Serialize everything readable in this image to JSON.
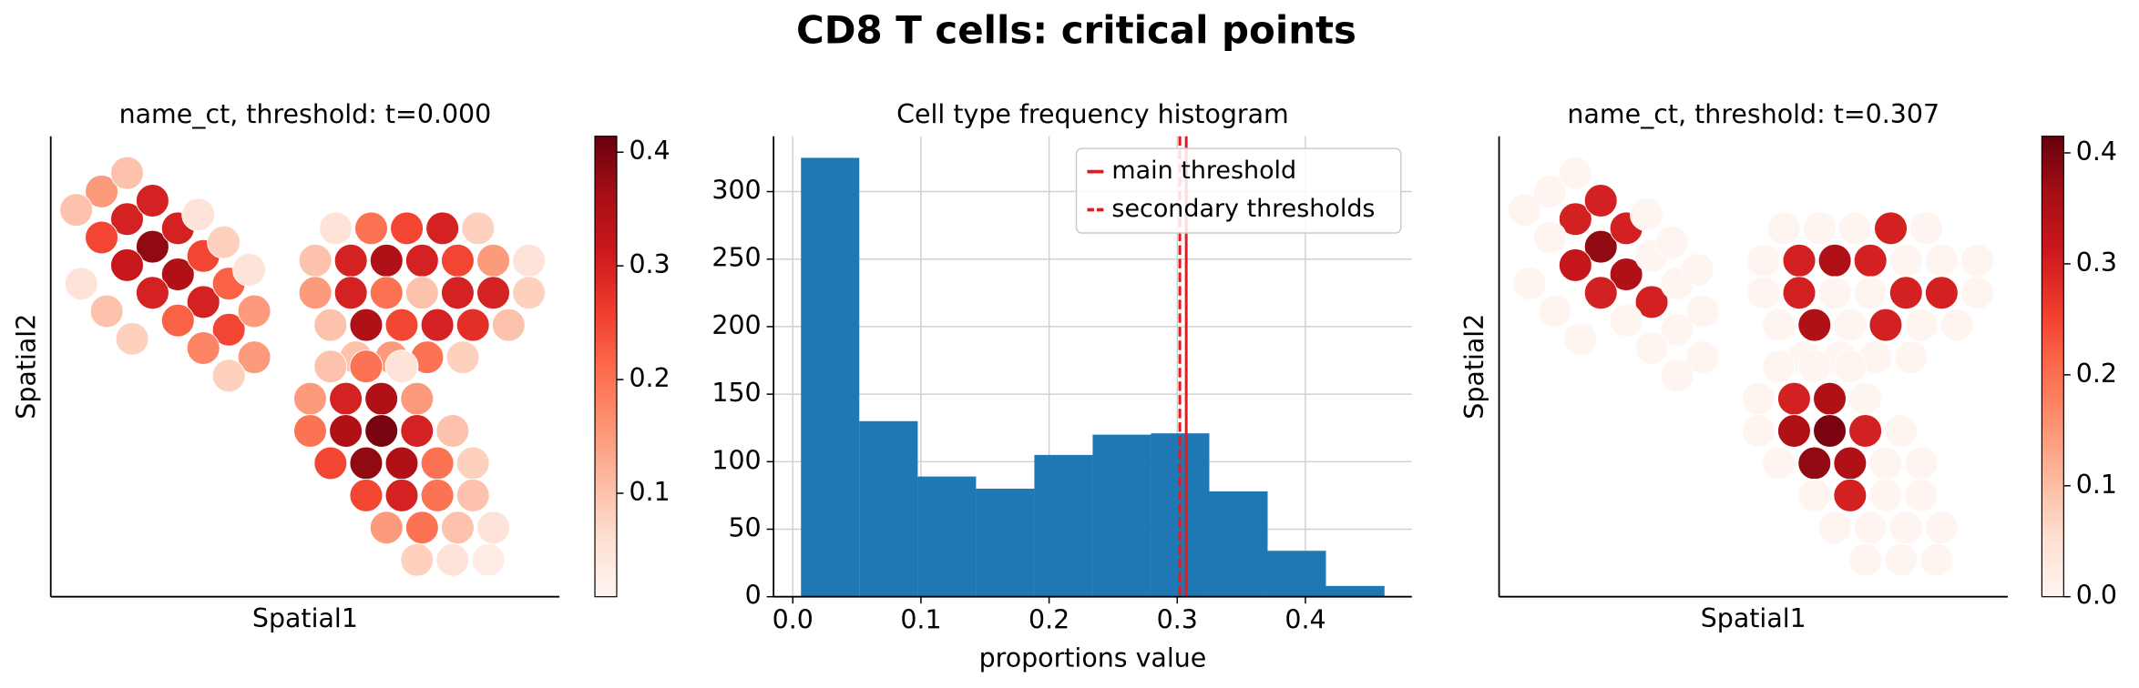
{
  "title": "CD8 T cells: critical points",
  "chart_data": [
    {
      "type": "scatter",
      "title": "name_ct, threshold: t=0.000",
      "xlabel": "Spatial1",
      "ylabel": "Spatial2",
      "xlim": [
        0,
        100
      ],
      "ylim": [
        0,
        100
      ],
      "cmap": "Reds",
      "clim": [
        0.009,
        0.414
      ],
      "cticks": [
        0.1,
        0.2,
        0.3,
        0.4
      ],
      "x": [
        10,
        15,
        20,
        25,
        30,
        35,
        40,
        15,
        20,
        25,
        30,
        35,
        40,
        5,
        10,
        15,
        20,
        25,
        30,
        35,
        29,
        34,
        39,
        6,
        11,
        16,
        56,
        63,
        70,
        77,
        84,
        52,
        59,
        66,
        73,
        80,
        87,
        94,
        52,
        59,
        66,
        73,
        80,
        87,
        94,
        55,
        62,
        69,
        76,
        83,
        90,
        60,
        67,
        74,
        81,
        55,
        62,
        69,
        51,
        58,
        65,
        72,
        51,
        58,
        65,
        72,
        79,
        55,
        62,
        69,
        76,
        83,
        62,
        69,
        76,
        83,
        66,
        73,
        80,
        87,
        72,
        79,
        86
      ],
      "y": [
        88,
        82,
        76,
        70,
        64,
        58,
        52,
        92,
        86,
        80,
        74,
        68,
        62,
        84,
        78,
        72,
        66,
        60,
        54,
        48,
        83,
        77,
        71,
        68,
        62,
        56,
        80,
        80,
        80,
        80,
        80,
        73,
        73,
        73,
        73,
        73,
        73,
        73,
        66,
        66,
        66,
        66,
        66,
        66,
        66,
        59,
        59,
        59,
        59,
        59,
        59,
        52,
        52,
        52,
        52,
        50,
        50,
        50,
        43,
        43,
        43,
        43,
        36,
        36,
        36,
        36,
        36,
        29,
        29,
        29,
        29,
        29,
        22,
        22,
        22,
        22,
        15,
        15,
        15,
        15,
        8,
        8,
        8
      ],
      "values": [
        0.15,
        0.3,
        0.38,
        0.35,
        0.3,
        0.25,
        0.15,
        0.1,
        0.3,
        0.3,
        0.25,
        0.22,
        0.15,
        0.1,
        0.25,
        0.32,
        0.3,
        0.22,
        0.18,
        0.08,
        0.05,
        0.08,
        0.05,
        0.05,
        0.1,
        0.08,
        0.05,
        0.2,
        0.25,
        0.3,
        0.08,
        0.1,
        0.3,
        0.35,
        0.3,
        0.25,
        0.15,
        0.05,
        0.15,
        0.3,
        0.2,
        0.1,
        0.3,
        0.3,
        0.08,
        0.1,
        0.35,
        0.25,
        0.3,
        0.28,
        0.1,
        0.1,
        0.15,
        0.2,
        0.08,
        0.1,
        0.2,
        0.05,
        0.15,
        0.3,
        0.35,
        0.15,
        0.2,
        0.35,
        0.4,
        0.3,
        0.1,
        0.25,
        0.38,
        0.35,
        0.2,
        0.08,
        0.25,
        0.3,
        0.2,
        0.1,
        0.15,
        0.2,
        0.1,
        0.05,
        0.08,
        0.05,
        0.03
      ]
    },
    {
      "type": "histogram",
      "title": "Cell type frequency histogram",
      "xlabel": "proportions value",
      "bins": [
        0.0064,
        0.0519,
        0.0975,
        0.143,
        0.1885,
        0.234,
        0.2795,
        0.325,
        0.3705,
        0.416,
        0.4617
      ],
      "values": [
        325,
        130,
        89,
        80,
        105,
        120,
        121,
        78,
        34,
        8
      ],
      "color": "#1f77b4",
      "xlim": [
        -0.015,
        0.483
      ],
      "ylim": [
        0,
        341
      ],
      "xticks": [
        {
          "value": 0,
          "label": "0.0"
        },
        0.1,
        0.2,
        0.3,
        0.4
      ],
      "yticks": [
        0,
        50,
        100,
        150,
        200,
        250,
        300
      ],
      "grid": true,
      "legend": "upper right",
      "series": [
        {
          "name": "main threshold",
          "color": "#e8191c",
          "style": "solid",
          "values": [
            0.307
          ]
        },
        {
          "name": "secondary thresholds",
          "color": "#e8191c",
          "style": "dashed",
          "values": [
            0.302
          ]
        }
      ]
    },
    {
      "type": "scatter",
      "title": "name_ct, threshold: t=0.307",
      "xlabel": "Spatial1",
      "ylabel": "Spatial2",
      "xlim": [
        0,
        100
      ],
      "ylim": [
        0,
        100
      ],
      "cmap": "Reds",
      "clim": [
        0,
        0.415
      ],
      "cticks": [
        {
          "value": 0,
          "label": "0.0"
        },
        0.1,
        0.2,
        0.3,
        0.4
      ],
      "x": [
        10,
        15,
        20,
        25,
        30,
        35,
        40,
        15,
        20,
        25,
        30,
        35,
        40,
        5,
        10,
        15,
        20,
        25,
        30,
        35,
        29,
        34,
        39,
        6,
        11,
        16,
        56,
        63,
        70,
        77,
        84,
        52,
        59,
        66,
        73,
        80,
        87,
        94,
        52,
        59,
        66,
        73,
        80,
        87,
        94,
        55,
        62,
        69,
        76,
        83,
        90,
        60,
        67,
        74,
        81,
        55,
        62,
        69,
        51,
        58,
        65,
        72,
        51,
        58,
        65,
        72,
        79,
        55,
        62,
        69,
        76,
        83,
        62,
        69,
        76,
        83,
        66,
        73,
        80,
        87,
        72,
        79,
        86
      ],
      "y": [
        88,
        82,
        76,
        70,
        64,
        58,
        52,
        92,
        86,
        80,
        74,
        68,
        62,
        84,
        78,
        72,
        66,
        60,
        54,
        48,
        83,
        77,
        71,
        68,
        62,
        56,
        80,
        80,
        80,
        80,
        80,
        73,
        73,
        73,
        73,
        73,
        73,
        73,
        66,
        66,
        66,
        66,
        66,
        66,
        66,
        59,
        59,
        59,
        59,
        59,
        59,
        52,
        52,
        52,
        52,
        50,
        50,
        50,
        43,
        43,
        43,
        43,
        36,
        36,
        36,
        36,
        36,
        29,
        29,
        29,
        29,
        29,
        22,
        22,
        22,
        22,
        15,
        15,
        15,
        15,
        8,
        8,
        8
      ],
      "values": [
        0,
        0.3,
        0.38,
        0.35,
        0.3,
        0,
        0,
        0,
        0.3,
        0.3,
        0,
        0,
        0,
        0,
        0,
        0.32,
        0.3,
        0,
        0,
        0,
        0,
        0,
        0,
        0,
        0,
        0,
        0,
        0,
        0,
        0.3,
        0,
        0,
        0.3,
        0.35,
        0.3,
        0,
        0,
        0,
        0,
        0.3,
        0,
        0,
        0.3,
        0.3,
        0,
        0,
        0.35,
        0,
        0.3,
        0,
        0,
        0,
        0,
        0,
        0,
        0,
        0,
        0,
        0,
        0.3,
        0.35,
        0,
        0,
        0.35,
        0.4,
        0.3,
        0,
        0,
        0.38,
        0.35,
        0,
        0,
        0,
        0.3,
        0,
        0,
        0,
        0,
        0,
        0,
        0,
        0,
        0
      ]
    }
  ]
}
